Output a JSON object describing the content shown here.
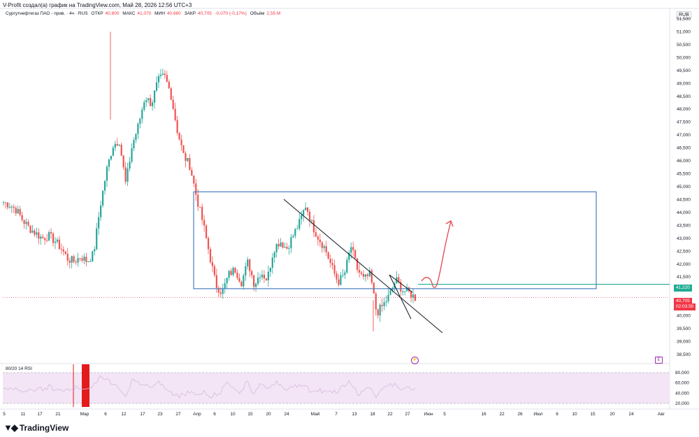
{
  "caption": "V-Profit создал(а) график на TradingView.com, Май 28, 2026 12:56 UTC+3",
  "legend": {
    "symbol": "Сургутнефтегаз ПАО - прив. · 4ч · RUS",
    "open_label": "ОТКР",
    "open": "40,800",
    "high_label": "МАКС",
    "high": "41,070",
    "low_label": "МИН",
    "low": "40,680",
    "close_label": "ЗАКР",
    "close": "40,705",
    "change": "-0,070 (-0,17%)",
    "volume_label": "Объём",
    "volume": "2,55 M"
  },
  "currency": "RUB",
  "price_tags": {
    "level": "41,220",
    "last": "40,705",
    "countdown": "02:03:50"
  },
  "rsi_label": "80/20 14 RSI",
  "logo_text": "TradingView",
  "colors": {
    "up": "#26a69a",
    "down": "#ef5350",
    "box": "#4a7fc1",
    "level": "#22ab94",
    "rsi_fill": "#f3e5f5",
    "rsi_line": "#d7b8de",
    "arrow": "#e0474c",
    "rsi_spike": "#e31b1b"
  },
  "chart_data": {
    "type": "candlestick",
    "price_axis": {
      "ticks": [
        "51,500",
        "51,000",
        "50,500",
        "50,000",
        "49,500",
        "49,000",
        "48,500",
        "48,000",
        "47,500",
        "47,000",
        "46,500",
        "46,000",
        "45,500",
        "45,000",
        "44,500",
        "44,000",
        "43,500",
        "43,000",
        "42,500",
        "42,000",
        "41,500",
        "41,000",
        "40,500",
        "40,000",
        "39,500",
        "39,000",
        "38,500"
      ],
      "ylim": [
        38500,
        51500
      ]
    },
    "rsi_axis": {
      "ticks": [
        "80,000",
        "60,000",
        "40,000",
        "20,000"
      ],
      "ylim": [
        20,
        80
      ]
    },
    "x_axis": {
      "ticks": [
        "5",
        "11",
        "17",
        "21",
        "Мар",
        "6",
        "12",
        "17",
        "23",
        "27",
        "Апр",
        "6",
        "10",
        "15",
        "20",
        "24",
        "Май",
        "7",
        "13",
        "18",
        "22",
        "27",
        "Июн",
        "5",
        "16",
        "22",
        "26",
        "Июл",
        "6",
        "10",
        "15",
        "20",
        "24",
        "Авг"
      ]
    },
    "close_path": [
      44.4,
      44.3,
      44.1,
      43.7,
      43.4,
      43.2,
      43.0,
      43.1,
      42.9,
      42.6,
      42.2,
      42.1,
      42.3,
      42.1,
      42.4,
      44.2,
      45.6,
      46.6,
      46.8,
      45.1,
      46.6,
      47.4,
      48.5,
      48.2,
      49.1,
      49.3,
      48.6,
      47.2,
      46.2,
      45.8,
      44.6,
      43.6,
      42.4,
      41.2,
      40.9,
      41.6,
      41.8,
      41.3,
      42.1,
      41.2,
      41.7,
      41.4,
      42.6,
      42.9,
      42.6,
      43.1,
      43.6,
      44.3,
      43.5,
      43.0,
      42.6,
      41.9,
      41.3,
      41.6,
      42.7,
      41.8,
      41.4,
      41.6,
      40.1,
      40.4,
      40.8,
      41.4,
      41.0,
      40.9,
      40.7
    ],
    "annotations": {
      "box_top": 44.8,
      "box_bottom": 41.05,
      "level": 41.22
    }
  }
}
